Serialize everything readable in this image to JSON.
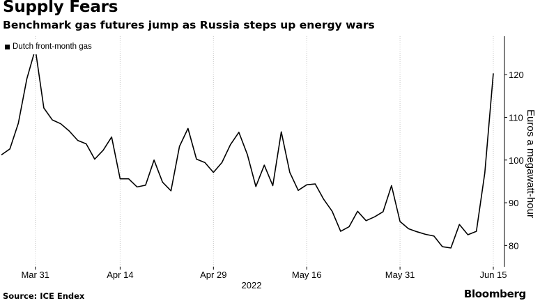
{
  "header": {
    "title": "Supply Fears",
    "subtitle": "Benchmark gas futures jump as Russia steps up energy wars"
  },
  "footer": {
    "source": "Source: ICE Endex",
    "brand": "Bloomberg"
  },
  "chart_data": {
    "type": "line",
    "title": "Supply Fears",
    "subtitle": "Benchmark gas futures jump as Russia steps up energy wars",
    "ylabel": "Euros a megawatt-hour",
    "xlabel": "2022",
    "year_label": "2022",
    "ylim": [
      75,
      129
    ],
    "y_ticks": [
      80,
      90,
      100,
      110,
      120
    ],
    "y_axis_side": "right",
    "grid": "vertical dotted at x ticks",
    "legend_position": "top-left",
    "line_color": "#000000",
    "x_ticks": [
      {
        "label": "Mar 31",
        "index": 4
      },
      {
        "label": "Apr 14",
        "index": 14
      },
      {
        "label": "Apr 29",
        "index": 25
      },
      {
        "label": "May 16",
        "index": 36
      },
      {
        "label": "May 31",
        "index": 47
      },
      {
        "label": "Jun 15",
        "index": 58
      }
    ],
    "series": [
      {
        "name": "Dutch front-month gas",
        "values": [
          101.2,
          102.6,
          108.6,
          119.0,
          126.0,
          112.2,
          109.4,
          108.5,
          106.8,
          104.6,
          103.8,
          100.2,
          102.3,
          105.4,
          95.6,
          95.6,
          93.7,
          94.1,
          100.0,
          94.8,
          92.8,
          103.2,
          107.4,
          100.2,
          99.4,
          97.1,
          99.4,
          103.6,
          106.5,
          101.3,
          93.8,
          98.8,
          94.0,
          106.6,
          97.1,
          92.9,
          94.2,
          94.4,
          90.8,
          88.0,
          83.3,
          84.4,
          88.0,
          85.8,
          86.7,
          87.9,
          94.0,
          85.6,
          83.9,
          83.2,
          82.6,
          82.2,
          79.7,
          79.4,
          84.9,
          82.5,
          83.3,
          97.0,
          120.3
        ]
      }
    ]
  }
}
